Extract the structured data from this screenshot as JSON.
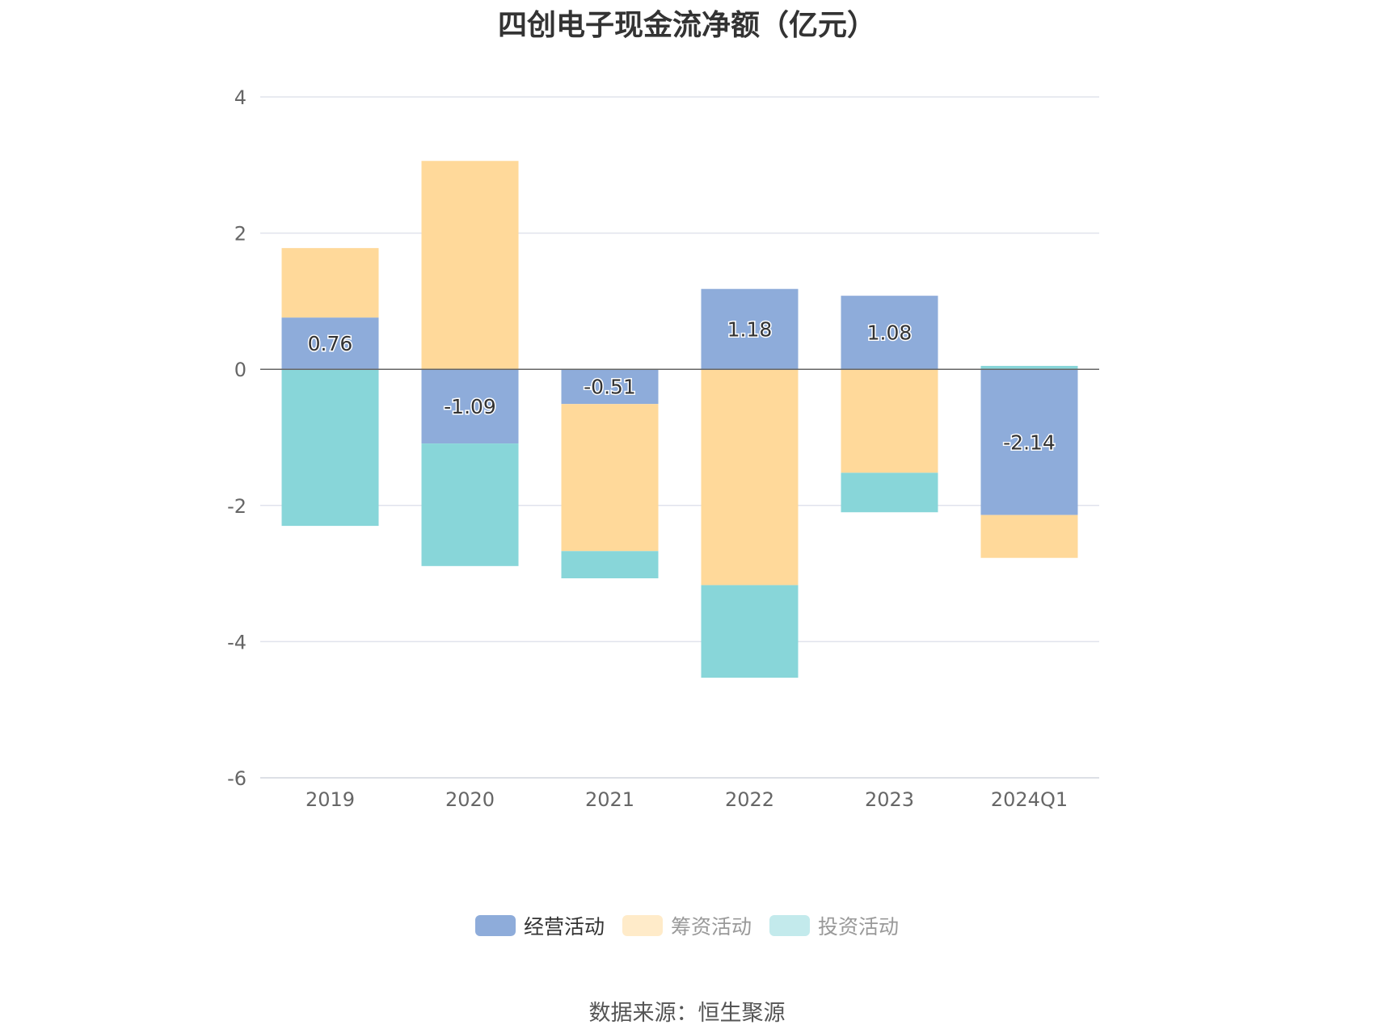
{
  "chart_data": {
    "type": "bar",
    "stacked": true,
    "title": "四创电子现金流净额（亿元）",
    "xlabel": "",
    "ylabel": "",
    "categories": [
      "2019",
      "2020",
      "2021",
      "2022",
      "2023",
      "2024Q1"
    ],
    "ylim": [
      -6,
      4
    ],
    "yticks": [
      4,
      2,
      0,
      -2,
      -4,
      -6
    ],
    "grid": true,
    "legend_position": "bottom",
    "series": [
      {
        "name": "经营活动",
        "color": "#8EACDA",
        "legend_color": "#8EACDA",
        "values": [
          0.76,
          -1.09,
          -0.51,
          1.18,
          1.08,
          -2.14
        ],
        "labels": [
          "0.76",
          "-1.09",
          "-0.51",
          "1.18",
          "1.08",
          "-2.14"
        ]
      },
      {
        "name": "筹资活动",
        "color": "#FFD99A",
        "legend_color": "#FFEBC9",
        "values": [
          1.02,
          3.06,
          -2.16,
          -3.17,
          -1.52,
          -0.63
        ]
      },
      {
        "name": "投资活动",
        "color": "#88D6D9",
        "legend_color": "#C3EAEC",
        "values": [
          -2.3,
          -1.8,
          -0.4,
          -1.36,
          -0.58,
          0.05
        ]
      }
    ]
  },
  "source": "数据来源：恒生聚源"
}
